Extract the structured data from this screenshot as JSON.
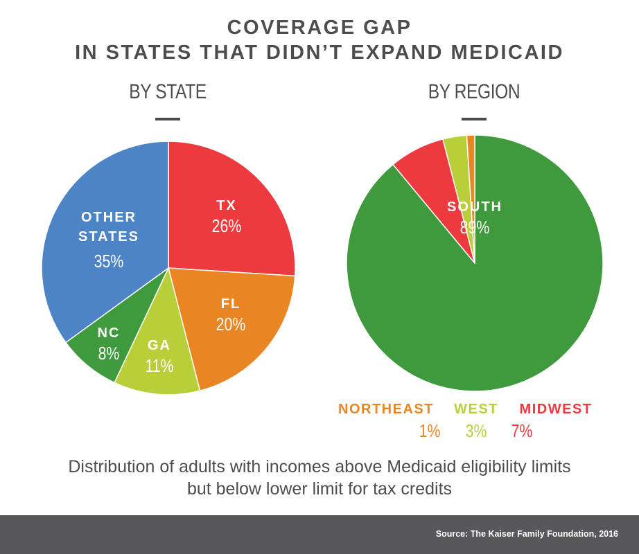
{
  "title_line1": "COVERAGE GAP",
  "title_line2": "IN STATES THAT DIDN’T EXPAND MEDICAID",
  "caption_line1": "Distribution of adults with incomes above Medicaid eligibility limits",
  "caption_line2": "but below lower limit for tax credits",
  "source": "Source: The Kaiser Family Foundation, 2016",
  "chart_data": [
    {
      "type": "pie",
      "title": "BY STATE",
      "slices": [
        {
          "label": "TX",
          "value": 26,
          "value_label": "26%",
          "color": "#ec3a3e"
        },
        {
          "label": "FL",
          "value": 20,
          "value_label": "20%",
          "color": "#ea8524"
        },
        {
          "label": "GA",
          "value": 11,
          "value_label": "11%",
          "color": "#b9cf3a"
        },
        {
          "label": "NC",
          "value": 8,
          "value_label": "8%",
          "color": "#3f9a3d"
        },
        {
          "label": "OTHER STATES",
          "value": 35,
          "value_label": "35%",
          "color": "#4d84c6"
        }
      ]
    },
    {
      "type": "pie",
      "title": "BY REGION",
      "slices": [
        {
          "label": "SOUTH",
          "value": 89,
          "value_label": "89%",
          "color": "#3f9a3d"
        },
        {
          "label": "MIDWEST",
          "value": 7,
          "value_label": "7%",
          "color": "#ec3a3e"
        },
        {
          "label": "WEST",
          "value": 3,
          "value_label": "3%",
          "color": "#b9cf3a"
        },
        {
          "label": "NORTHEAST",
          "value": 1,
          "value_label": "1%",
          "color": "#ea8524"
        }
      ]
    }
  ]
}
